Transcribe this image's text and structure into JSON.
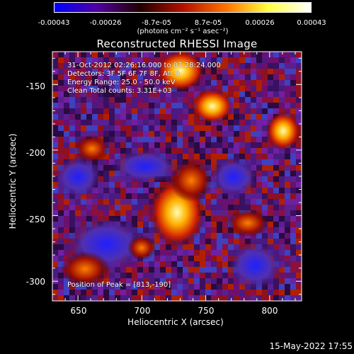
{
  "colorbar": {
    "ticks": [
      "-0.00043",
      "-0.00026",
      "-8.7e-05",
      "8.7e-05",
      "0.00026",
      "0.00043"
    ],
    "unit": "(photons cm⁻² s⁻¹ asec⁻²)",
    "colors": [
      "#0000ff",
      "#5000a0",
      "#200000",
      "#b01000",
      "#ff7000",
      "#ffff40",
      "#ffffff"
    ]
  },
  "plot": {
    "title": "Reconstructed RHESSI Image",
    "xlabel": "Heliocentric X (arcsec)",
    "ylabel": "Heliocentric Y (arcsec)",
    "xticks": [
      "650",
      "700",
      "750",
      "800"
    ],
    "yticks": [
      "-150",
      "-200",
      "-250",
      "-300"
    ],
    "xlim": [
      630,
      825
    ],
    "ylim": [
      -315,
      -125
    ]
  },
  "info": {
    "time": "31-Oct-2012 02:26:16.000 to 02:28:24.000",
    "detectors": "Detectors: 3F 5F 6F 7F 8F, Att 0",
    "energy": "Energy Range: 25.0 - 50.0 keV",
    "clean": "Clean     Total counts: 3.31E+03",
    "peak": "Position of Peak = [813,-190]"
  },
  "timestamp": "15-May-2022 17:55"
}
